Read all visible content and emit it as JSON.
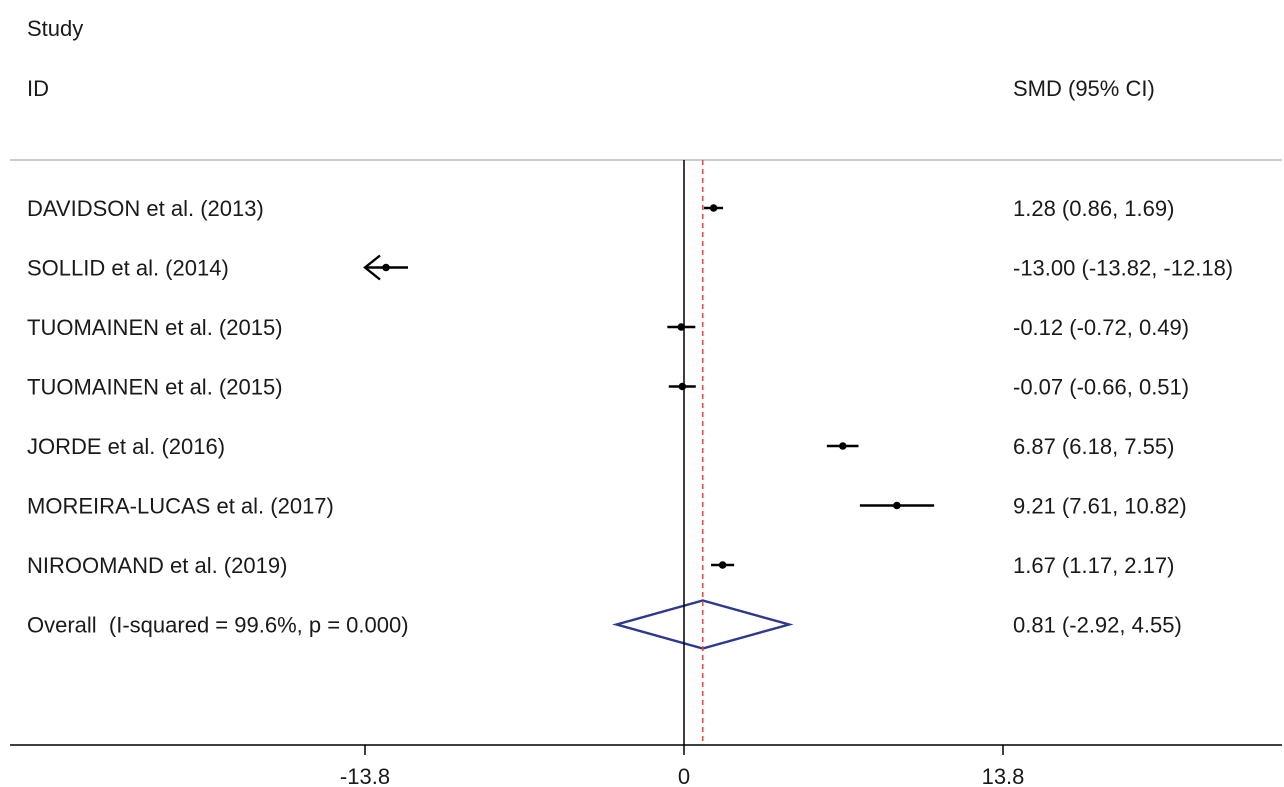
{
  "chart_data": {
    "type": "forest",
    "header": {
      "study_line1": "Study",
      "study_line2": "ID",
      "estimate_header": "SMD (95% CI)"
    },
    "studies": [
      {
        "label": "DAVIDSON et al. (2013)",
        "smd": 1.28,
        "lower": 0.86,
        "upper": 1.69,
        "ci_text": "1.28 (0.86, 1.69)"
      },
      {
        "label": "SOLLID et al. (2014)",
        "smd": -13.0,
        "lower": -13.82,
        "upper": -12.18,
        "ci_text": "-13.00 (-13.82, -12.18)",
        "truncated": true
      },
      {
        "label": "TUOMAINEN et al. (2015)",
        "smd": -0.12,
        "lower": -0.72,
        "upper": 0.49,
        "ci_text": "-0.12 (-0.72, 0.49)"
      },
      {
        "label": "TUOMAINEN et al. (2015)",
        "smd": -0.07,
        "lower": -0.66,
        "upper": 0.51,
        "ci_text": "-0.07 (-0.66, 0.51)"
      },
      {
        "label": "JORDE et al. (2016)",
        "smd": 6.87,
        "lower": 6.18,
        "upper": 7.55,
        "ci_text": "6.87 (6.18, 7.55)"
      },
      {
        "label": "MOREIRA-LUCAS et al. (2017)",
        "smd": 9.21,
        "lower": 7.61,
        "upper": 10.82,
        "ci_text": "9.21 (7.61, 10.82)"
      },
      {
        "label": "NIROOMAND et al. (2019)",
        "smd": 1.67,
        "lower": 1.17,
        "upper": 2.17,
        "ci_text": "1.67 (1.17, 2.17)"
      }
    ],
    "overall": {
      "label": "Overall  (I-squared = 99.6%, p = 0.000)",
      "smd": 0.81,
      "lower": -2.92,
      "upper": 4.55,
      "ci_text": "0.81 (-2.92, 4.55)"
    },
    "x_ticks": [
      {
        "value": -13.8,
        "label": "-13.8"
      },
      {
        "value": 0,
        "label": "0"
      },
      {
        "value": 13.8,
        "label": "13.8"
      }
    ],
    "xlim": [
      -13.8,
      13.8
    ],
    "null_line": 0,
    "colors": {
      "text": "#1a1a1a",
      "axis": "#000000",
      "overall_diamond": "#2b3990",
      "overall_dashed_line": "#d9534f",
      "divider": "#9a9a9a"
    }
  }
}
